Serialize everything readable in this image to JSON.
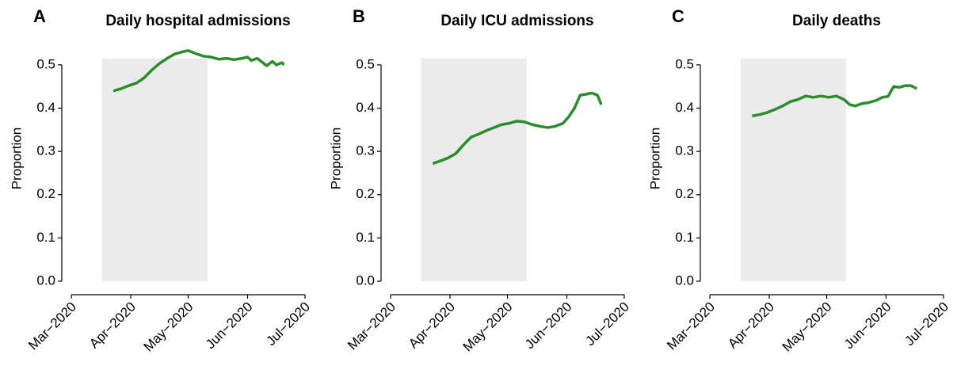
{
  "chart_data": [
    {
      "type": "line",
      "label": "A",
      "title": "Daily hospital admissions",
      "ylabel": "Proportion",
      "xlim": [
        56,
        183
      ],
      "xticks": [
        {
          "value": 61,
          "label": "Mar−2020"
        },
        {
          "value": 92,
          "label": "Apr−2020"
        },
        {
          "value": 122,
          "label": "May−2020"
        },
        {
          "value": 153,
          "label": "Jun−2020"
        },
        {
          "value": 183,
          "label": "Jul−2020"
        }
      ],
      "ylim": [
        0,
        0.54
      ],
      "yticks": [
        {
          "value": 0,
          "label": "0.0"
        },
        0.1,
        0.2,
        0.3,
        0.4,
        0.5
      ],
      "shade": [
        77,
        132
      ],
      "shade_color": "#ebebeb",
      "x": [
        83,
        87,
        91,
        95,
        99,
        103,
        107,
        111,
        115,
        119,
        122,
        126,
        130,
        134,
        138,
        142,
        146,
        150,
        153,
        155,
        158,
        161,
        163,
        166,
        168,
        171,
        172
      ],
      "series": [
        {
          "color": "#2a8c2a",
          "values": [
            0.44,
            0.445,
            0.452,
            0.458,
            0.47,
            0.488,
            0.503,
            0.515,
            0.525,
            0.53,
            0.533,
            0.526,
            0.52,
            0.518,
            0.513,
            0.515,
            0.512,
            0.515,
            0.518,
            0.51,
            0.515,
            0.505,
            0.498,
            0.508,
            0.5,
            0.505,
            0.5
          ]
        }
      ]
    },
    {
      "type": "line",
      "label": "B",
      "title": "Daily ICU admissions",
      "ylabel": "Proportion",
      "xlim": [
        56,
        183
      ],
      "xticks": [
        {
          "value": 61,
          "label": "Mar−2020"
        },
        {
          "value": 92,
          "label": "Apr−2020"
        },
        {
          "value": 122,
          "label": "May−2020"
        },
        {
          "value": 153,
          "label": "Jun−2020"
        },
        {
          "value": 183,
          "label": "Jul−2020"
        }
      ],
      "ylim": [
        0,
        0.54
      ],
      "yticks": [
        {
          "value": 0,
          "label": "0.0"
        },
        0.1,
        0.2,
        0.3,
        0.4,
        0.5
      ],
      "shade": [
        77,
        132
      ],
      "shade_color": "#ebebeb",
      "x": [
        83,
        87,
        91,
        95,
        99,
        103,
        107,
        111,
        115,
        119,
        123,
        127,
        131,
        135,
        139,
        143,
        147,
        151,
        154,
        157,
        160,
        163,
        166,
        169,
        171
      ],
      "series": [
        {
          "color": "#2a8c2a",
          "values": [
            0.272,
            0.278,
            0.285,
            0.295,
            0.315,
            0.333,
            0.34,
            0.348,
            0.355,
            0.362,
            0.365,
            0.37,
            0.368,
            0.362,
            0.358,
            0.355,
            0.358,
            0.365,
            0.38,
            0.4,
            0.43,
            0.432,
            0.435,
            0.43,
            0.408
          ]
        }
      ]
    },
    {
      "type": "line",
      "label": "C",
      "title": "Daily deaths",
      "ylabel": "Proportion",
      "xlim": [
        56,
        183
      ],
      "xticks": [
        {
          "value": 61,
          "label": "Mar−2020"
        },
        {
          "value": 92,
          "label": "Apr−2020"
        },
        {
          "value": 122,
          "label": "May−2020"
        },
        {
          "value": 153,
          "label": "Jun−2020"
        },
        {
          "value": 183,
          "label": "Jul−2020"
        }
      ],
      "ylim": [
        0,
        0.54
      ],
      "yticks": [
        {
          "value": 0,
          "label": "0.0"
        },
        0.1,
        0.2,
        0.3,
        0.4,
        0.5
      ],
      "shade": [
        77,
        132
      ],
      "shade_color": "#ebebeb",
      "x": [
        83,
        87,
        91,
        95,
        99,
        103,
        107,
        111,
        115,
        119,
        123,
        127,
        131,
        134,
        137,
        140,
        144,
        148,
        151,
        154,
        157,
        160,
        163,
        166,
        169
      ],
      "series": [
        {
          "color": "#2a8c2a",
          "values": [
            0.382,
            0.385,
            0.39,
            0.397,
            0.405,
            0.415,
            0.42,
            0.428,
            0.425,
            0.428,
            0.425,
            0.428,
            0.42,
            0.408,
            0.405,
            0.41,
            0.413,
            0.418,
            0.425,
            0.427,
            0.45,
            0.448,
            0.452,
            0.452,
            0.445
          ]
        }
      ]
    }
  ]
}
